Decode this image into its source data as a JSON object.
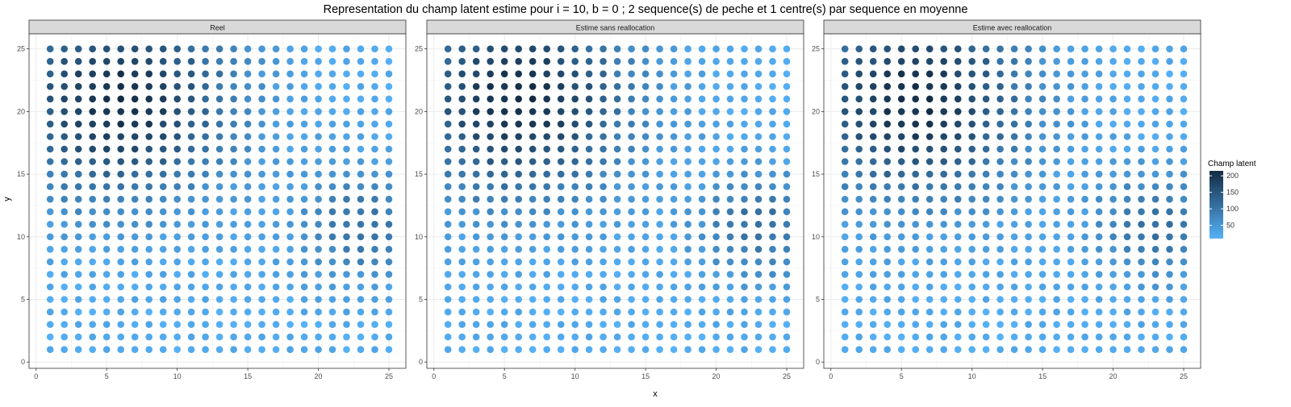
{
  "chart_data": {
    "type": "scatter",
    "title": "Representation du champ latent estime pour i = 10, b = 0 ; 2 sequence(s) de peche et 1 centre(s) par sequence en moyenne",
    "xlabel": "x",
    "ylabel": "y",
    "xlim": [
      -0.5,
      26.2
    ],
    "ylim": [
      -0.5,
      26.2
    ],
    "xticks": [
      0,
      5,
      10,
      15,
      20,
      25
    ],
    "yticks": [
      0,
      5,
      10,
      15,
      20,
      25
    ],
    "grid": true,
    "grid_x": {
      "from": 1,
      "to": 25
    },
    "grid_y": {
      "from": 1,
      "to": 25
    },
    "panels": [
      "Reel",
      "Estime sans reallocation",
      "Estime avec reallocation"
    ],
    "legend": {
      "title": "Champ latent",
      "ticks": [
        50,
        100,
        150,
        200
      ],
      "range": [
        10,
        215
      ],
      "color_low": "#56B1F7",
      "color_high": "#132B43",
      "position": "right"
    },
    "description_of_field": {
      "hotspots": [
        {
          "center": [
            6,
            21
          ],
          "radius": 5.5,
          "amp": 190
        },
        {
          "center": [
            23,
            11
          ],
          "radius": 3.0,
          "amp": 90
        }
      ],
      "background": 20
    }
  }
}
